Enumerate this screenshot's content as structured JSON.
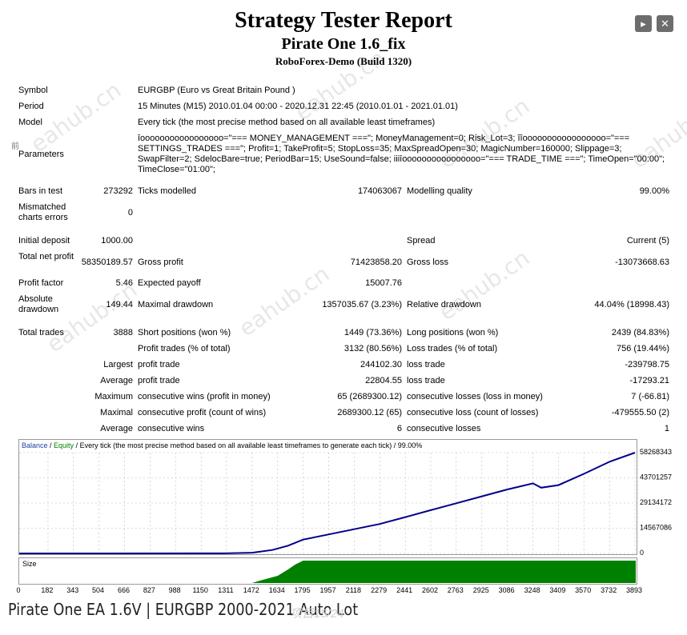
{
  "header": {
    "title": "Strategy Tester Report",
    "subtitle": "Pirate One 1.6_fix",
    "server": "RoboForex-Demo (Build 1320)"
  },
  "window": {
    "play_icon": "▸",
    "close_icon": "✕"
  },
  "settings": {
    "symbol_label": "Symbol",
    "symbol": "EURGBP (Euro vs Great Britain Pound )",
    "period_label": "Period",
    "period": "15 Minutes (M15) 2010.01.04 00:00 - 2020.12.31 22:45 (2010.01.01 - 2021.01.01)",
    "model_label": "Model",
    "model": "Every tick (the most precise method based on all available least timeframes)",
    "parameters_label": "Parameters",
    "side_mark": "前",
    "parameters": "îooooooooooooooooo=\"=== MONEY_MANAGEMENT ===\"; MoneyManagement=0; Risk_Lot=3; îîooooooooooooooooo=\"=== SETTINGS_TRADES ===\"; Profit=1; TakeProfit=5; StopLoss=35; MaxSpreadOpen=30; MagicNumber=160000; Slippage=3; SwapFilter=2; SdelocBare=true; PeriodBar=15; UseSound=false; iiiîoooooooooooooooo=\"=== TRADE_TIME ===\"; TimeOpen=\"00:00\"; TimeClose=\"01:00\";"
  },
  "quality": {
    "bars_label": "Bars in test",
    "bars": "273292",
    "ticks_label": "Ticks modelled",
    "ticks": "174063067",
    "modelling_label": "Modelling quality",
    "modelling": "99.00%",
    "mismatch_label": "Mismatched charts errors",
    "mismatch": "0"
  },
  "results": {
    "deposit_label": "Initial deposit",
    "deposit": "1000.00",
    "spread_label": "Spread",
    "spread": "Current (5)",
    "net_label": "Total net profit",
    "net": "58350189.57",
    "gross_profit_label": "Gross profit",
    "gross_profit": "71423858.20",
    "gross_loss_label": "Gross loss",
    "gross_loss": "-13073668.63",
    "pf_label": "Profit factor",
    "pf": "5.46",
    "ep_label": "Expected payoff",
    "ep": "15007.76",
    "abs_dd_label": "Absolute drawdown",
    "abs_dd": "149.44",
    "max_dd_label": "Maximal drawdown",
    "max_dd": "1357035.67 (3.23%)",
    "rel_dd_label": "Relative drawdown",
    "rel_dd": "44.04% (18998.43)",
    "trades_label": "Total trades",
    "trades": "3888",
    "short_label": "Short positions (won %)",
    "short": "1449 (73.36%)",
    "long_label": "Long positions (won %)",
    "long": "2439 (84.83%)",
    "pt_label": "Profit trades (% of total)",
    "pt": "3132 (80.56%)",
    "lt_label": "Loss trades (% of total)",
    "lt": "756 (19.44%)",
    "largest_label": "Largest",
    "lp_label": "profit trade",
    "lp": "244102.30",
    "ll_label": "loss trade",
    "ll": "-239798.75",
    "average_label": "Average",
    "ap_label": "profit trade",
    "ap": "22804.55",
    "al_label": "loss trade",
    "al": "-17293.21",
    "maximum_label": "Maximum",
    "mcw_label": "consecutive wins (profit in money)",
    "mcw": "65 (2689300.12)",
    "mcl_label": "consecutive losses (loss in money)",
    "mcl": "7 (-66.81)",
    "maximal_label": "Maximal",
    "mcp_label": "consecutive profit (count of wins)",
    "mcp": "2689300.12 (65)",
    "mclo_label": "consecutive loss (count of losses)",
    "mclo": "-479555.50 (2)",
    "average2_label": "Average",
    "acw_label": "consecutive wins",
    "acw": "6",
    "acl_label": "consecutive losses",
    "acl": "1"
  },
  "chart": {
    "legend_balance": "Balance",
    "legend_sep": " / ",
    "legend_equity": "Equity",
    "legend_rest": " / Every tick (the most precise method based on all available least timeframes to generate each tick) / 99.00%",
    "size_label": "Size",
    "colors": {
      "balance": "#00008b",
      "equity": "#008000",
      "size": "#008000",
      "legend_balance": "#1f3fa6"
    }
  },
  "chart_data": {
    "type": "line",
    "y_ticks": [
      "58268343",
      "43701257",
      "29134172",
      "14567086",
      "0"
    ],
    "x_ticks": [
      "0",
      "182",
      "343",
      "504",
      "666",
      "827",
      "988",
      "1150",
      "1311",
      "1472",
      "1634",
      "1795",
      "1957",
      "2118",
      "2279",
      "2441",
      "2602",
      "2763",
      "2925",
      "3086",
      "3248",
      "3409",
      "3570",
      "3732",
      "3893"
    ],
    "ylim": [
      0,
      58268343
    ],
    "xlim": [
      0,
      3893
    ],
    "series": [
      {
        "name": "Balance",
        "x": [
          0,
          1300,
          1472,
          1600,
          1700,
          1795,
          1957,
          2118,
          2279,
          2441,
          2602,
          2763,
          2925,
          3086,
          3248,
          3300,
          3409,
          3570,
          3732,
          3893
        ],
        "values": [
          1000,
          50000,
          400000,
          2000000,
          4500000,
          8000000,
          11000000,
          14000000,
          17000000,
          21000000,
          25000000,
          29000000,
          33000000,
          37000000,
          40500000,
          38000000,
          39500000,
          46000000,
          53000000,
          58268343
        ]
      }
    ]
  },
  "footer": {
    "caption": "Pirate One EA 1.6V | EURGBP 2000-2021 Auto Lot",
    "page_count": "项目15/24"
  }
}
